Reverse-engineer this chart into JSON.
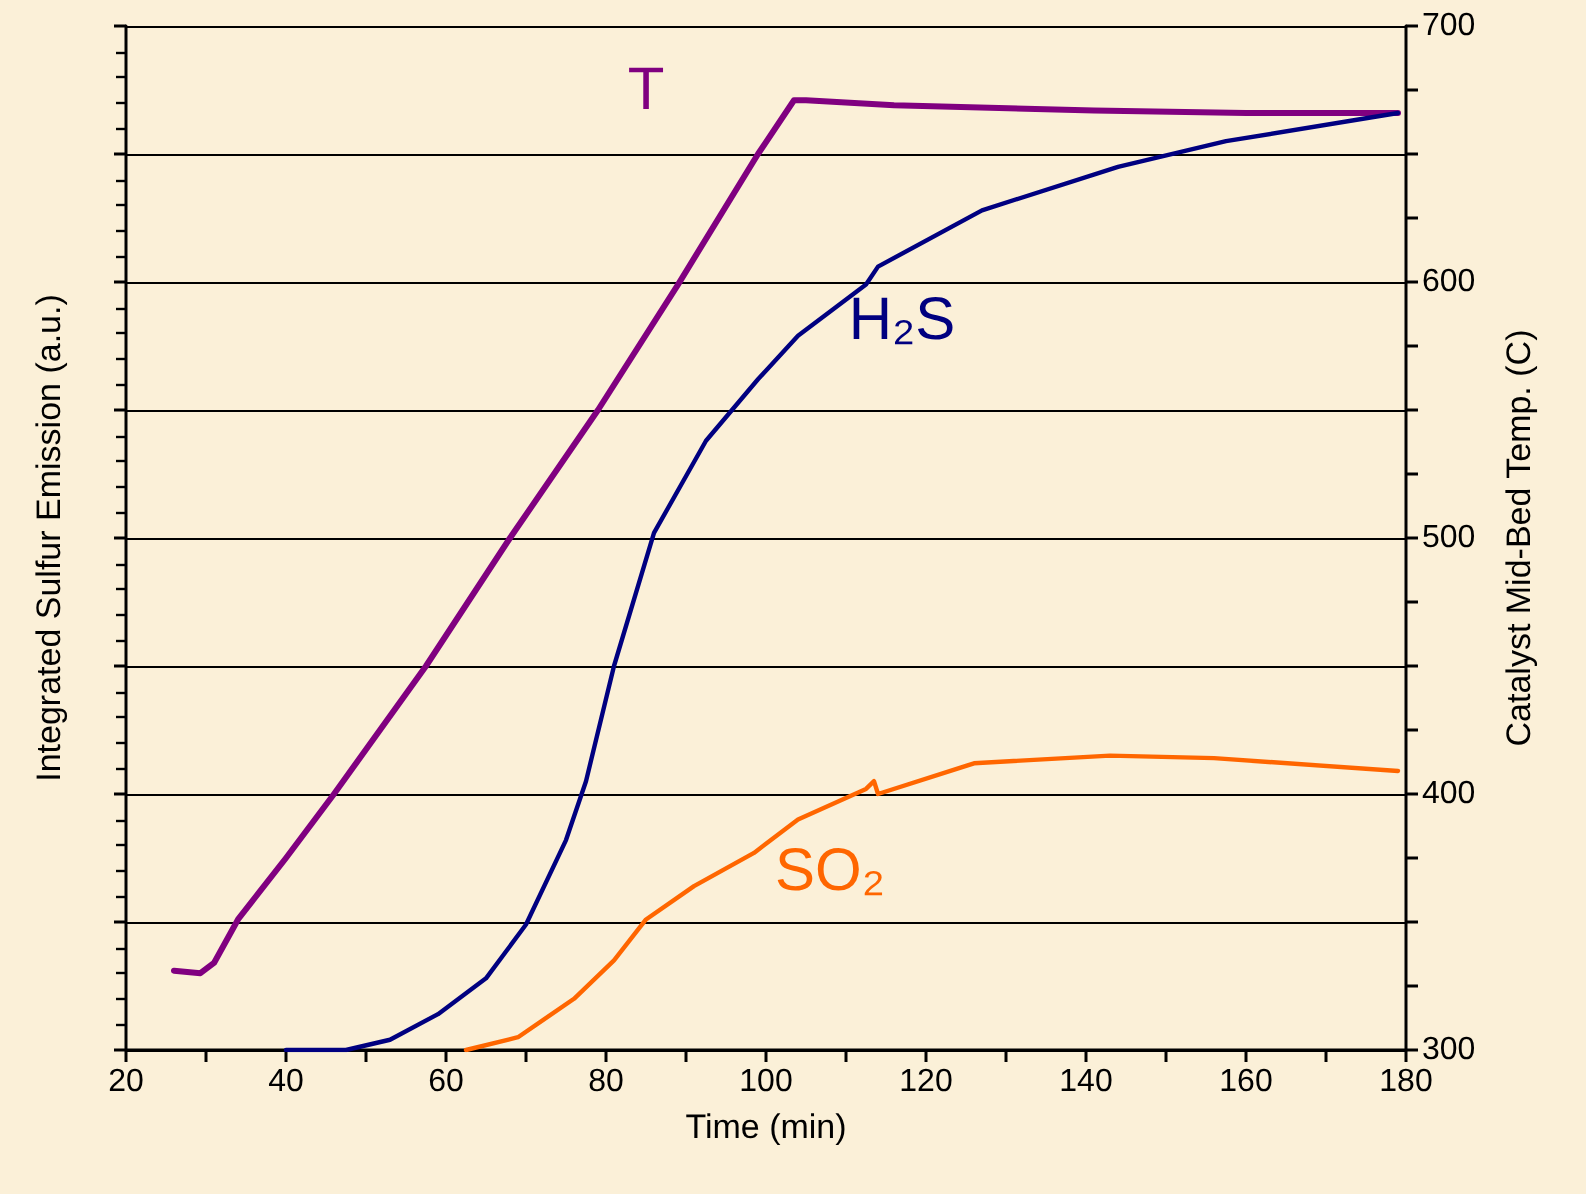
{
  "chart_data": {
    "type": "line",
    "xlabel": "Time (min)",
    "ylabel": "Integrated Sulfur Emission (a.u.)",
    "y2label": "Catalyst Mid-Bed Temp. (C)",
    "xlim": [
      20,
      180
    ],
    "xticks": [
      20,
      {
        "value": 30,
        "label": null
      },
      40,
      {
        "value": 50,
        "label": null
      },
      60,
      {
        "value": 70,
        "label": null
      },
      80,
      {
        "value": 90,
        "label": null
      },
      100,
      {
        "value": 110,
        "label": null
      },
      120,
      {
        "value": 130,
        "label": null
      },
      140,
      {
        "value": 150,
        "label": null
      },
      160,
      {
        "value": 170,
        "label": null
      },
      180
    ],
    "y2lim": [
      300,
      700
    ],
    "y2ticks": [
      300,
      {
        "value": 325,
        "label": null
      },
      {
        "value": 350,
        "label": null
      },
      {
        "value": 375,
        "label": null
      },
      400,
      {
        "value": 425,
        "label": null
      },
      {
        "value": 450,
        "label": null
      },
      {
        "value": 475,
        "label": null
      },
      500,
      {
        "value": 525,
        "label": null
      },
      {
        "value": 550,
        "label": null
      },
      {
        "value": 575,
        "label": null
      },
      600,
      {
        "value": 625,
        "label": null
      },
      {
        "value": 650,
        "label": null
      },
      {
        "value": 675,
        "label": null
      },
      700
    ],
    "grid": "y",
    "marker": "none",
    "line_style": "solid",
    "series": [
      {
        "name": "T",
        "color": "#800080",
        "axis": "y2",
        "x": [
          26,
          29.3,
          31,
          34,
          40,
          46,
          57.5,
          68,
          79,
          89,
          99,
          103.5,
          105,
          116,
          141,
          160,
          179
        ],
        "values": [
          331,
          330,
          334,
          351,
          375,
          400,
          450,
          500,
          550,
          599,
          650,
          671,
          671,
          669,
          667,
          666,
          666
        ]
      },
      {
        "name": "H₂S",
        "color": "#000080",
        "axis": "y2",
        "x": [
          40,
          47.5,
          53,
          59,
          65,
          70,
          75,
          77.5,
          81,
          86,
          92.5,
          99,
          104,
          112.5,
          114,
          127,
          144,
          157.5,
          179
        ],
        "values": [
          300,
          300,
          304,
          314,
          328,
          349,
          382,
          405,
          450,
          502,
          538,
          562,
          579,
          599,
          606,
          628,
          645,
          655,
          666
        ]
      },
      {
        "name": "SO₂",
        "color": "#ff6600",
        "axis": "y2",
        "x": [
          62.5,
          69,
          76,
          81,
          85,
          91,
          98.5,
          104,
          112.5,
          113.5,
          114,
          126,
          143,
          156,
          179
        ],
        "values": [
          300,
          305,
          320,
          335,
          351,
          364,
          377,
          390,
          402,
          405,
          400,
          412,
          415,
          414,
          409
        ]
      }
    ]
  }
}
